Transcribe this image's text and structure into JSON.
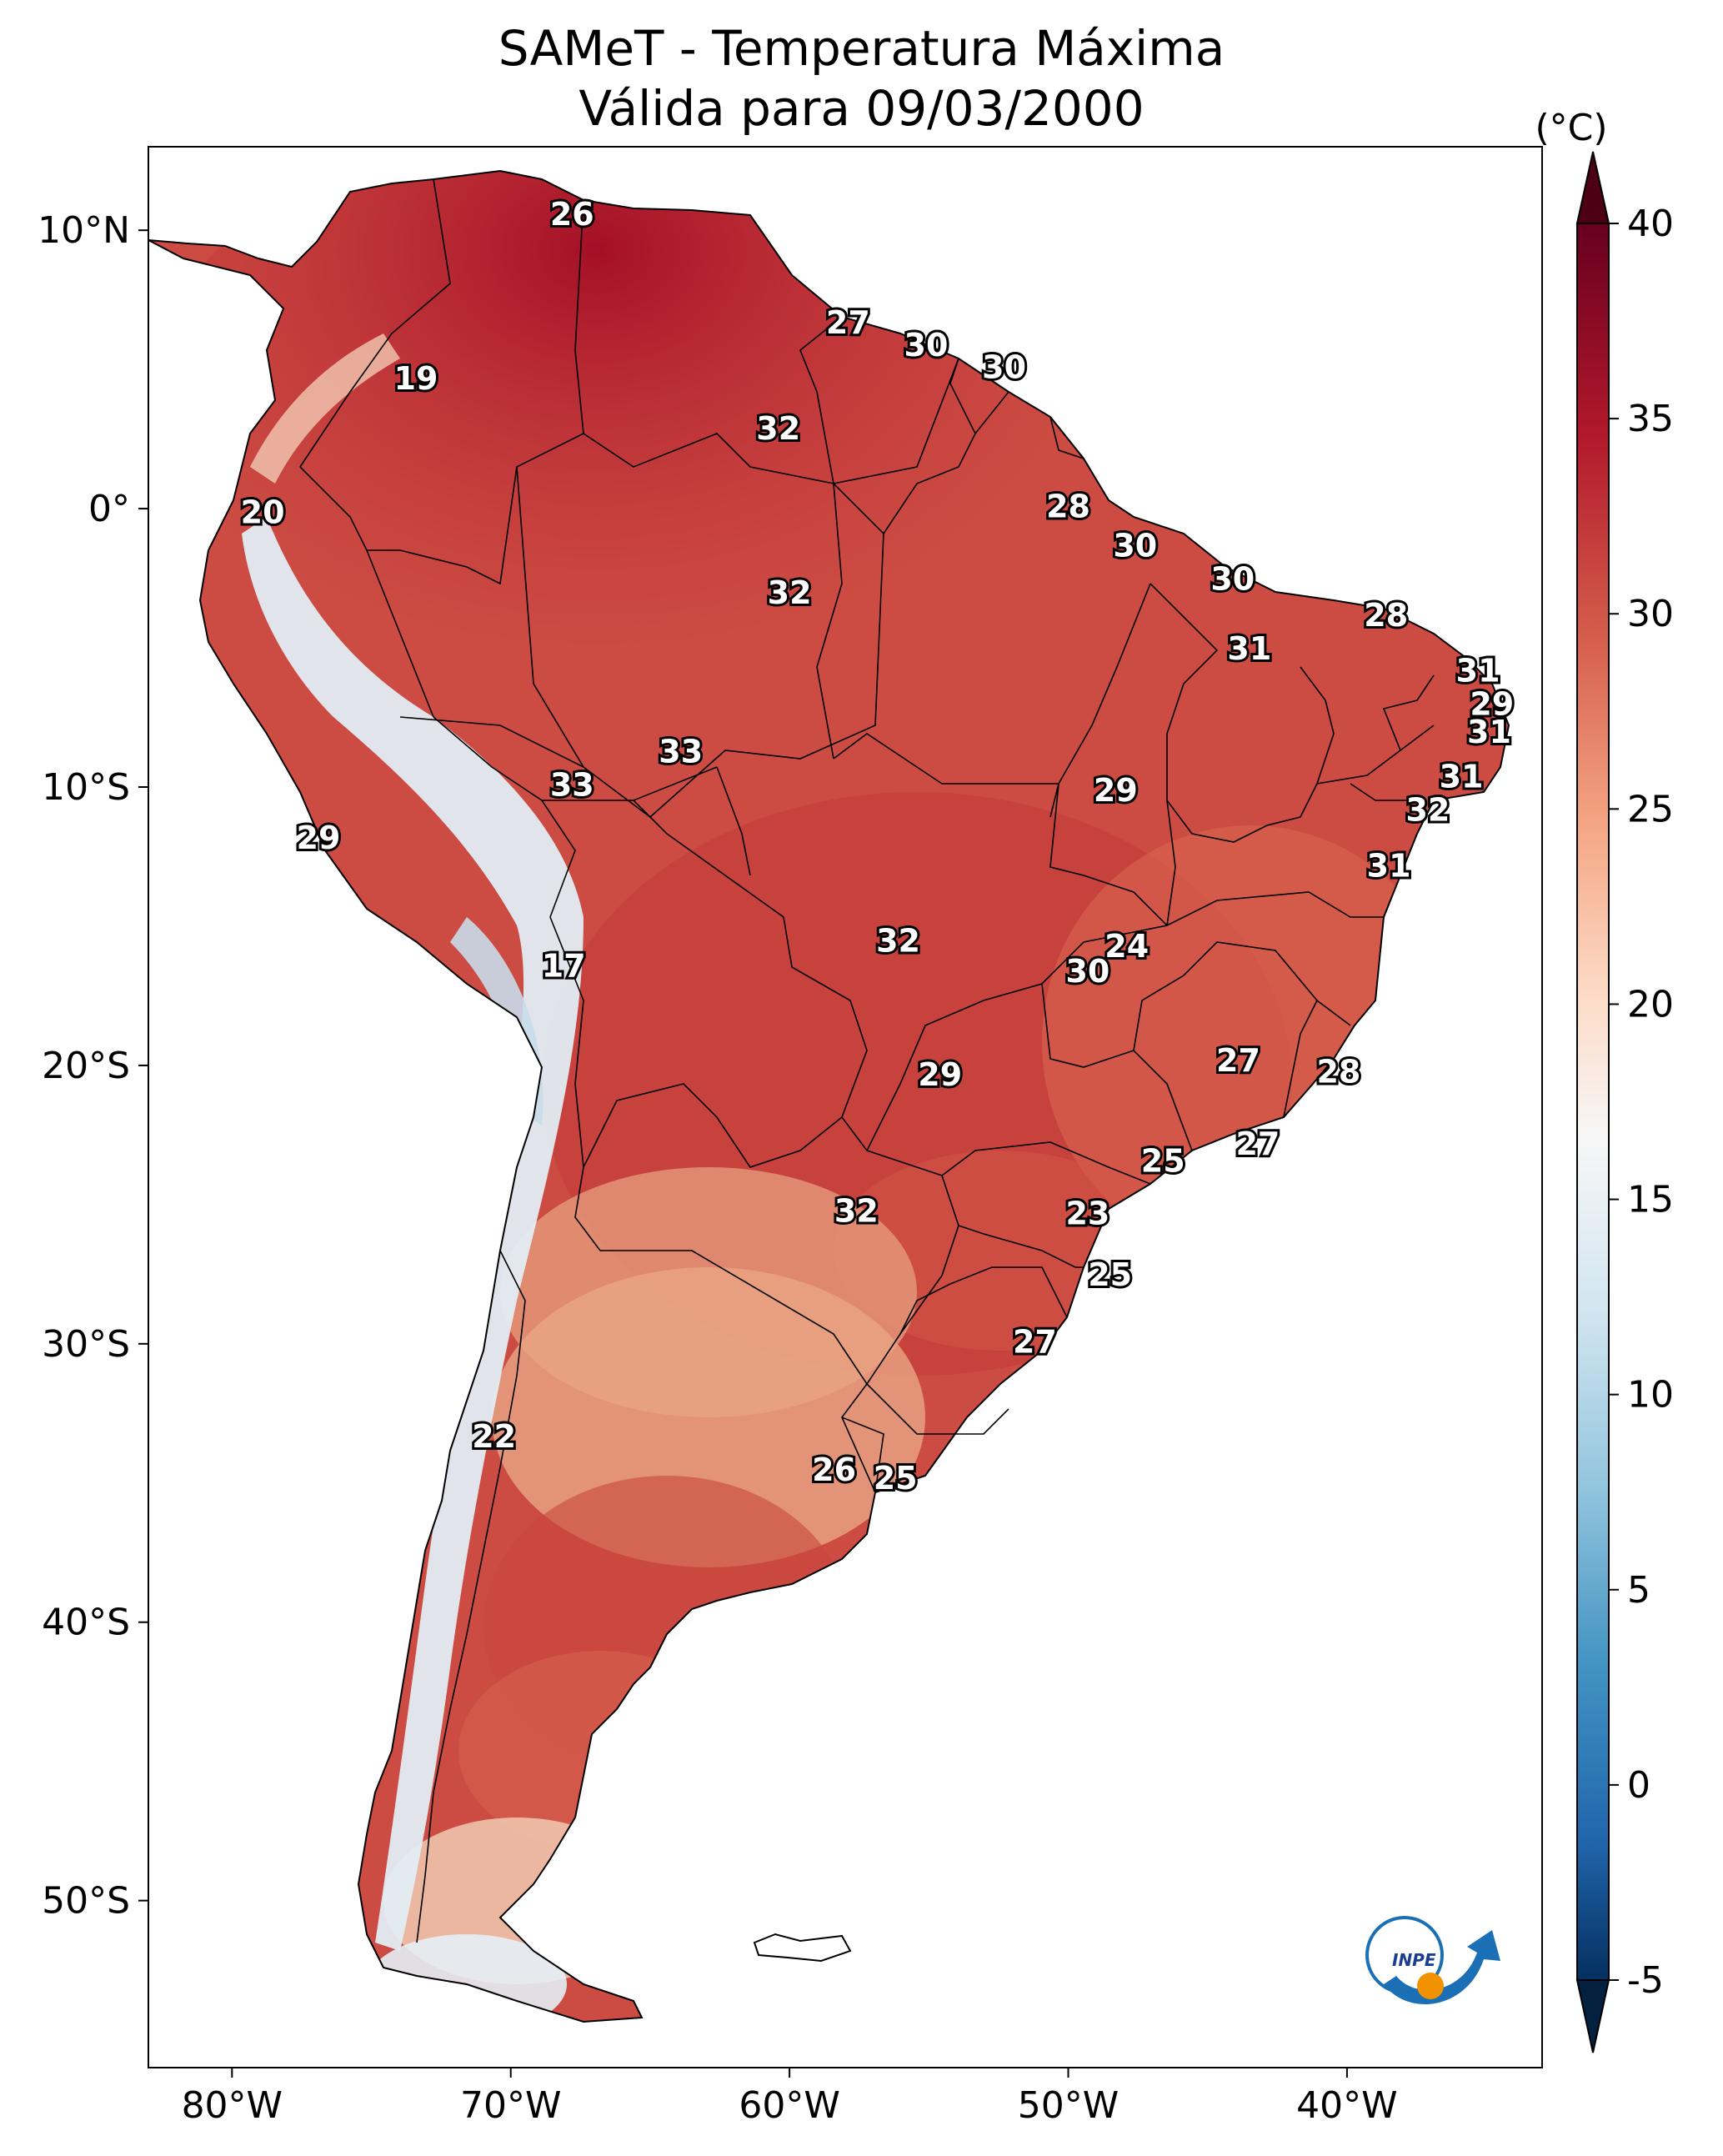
{
  "title": {
    "line1": "SAMeT - Temperatura Máxima",
    "line2": "Válida para 09/03/2000"
  },
  "map": {
    "lon_range": [
      -83,
      -33
    ],
    "lat_range": [
      -56,
      13
    ],
    "x_ticks": [
      {
        "lon": -80,
        "label": "80°W"
      },
      {
        "lon": -70,
        "label": "70°W"
      },
      {
        "lon": -60,
        "label": "60°W"
      },
      {
        "lon": -50,
        "label": "50°W"
      },
      {
        "lon": -40,
        "label": "40°W"
      }
    ],
    "y_ticks": [
      {
        "lat": 10,
        "label": "10°N"
      },
      {
        "lat": 0,
        "label": "0°"
      },
      {
        "lat": -10,
        "label": "10°S"
      },
      {
        "lat": -20,
        "label": "20°S"
      },
      {
        "lat": -30,
        "label": "30°S"
      },
      {
        "lat": -40,
        "label": "40°S"
      },
      {
        "lat": -50,
        "label": "50°S"
      }
    ]
  },
  "colorbar": {
    "unit_label": "(°C)",
    "min": -5,
    "max": 40,
    "ticks": [
      40,
      35,
      30,
      25,
      20,
      15,
      10,
      5,
      0,
      -5
    ],
    "stops": [
      "#67001f",
      "#b2182b",
      "#d6604d",
      "#f4a582",
      "#fddbc7",
      "#f7f7f7",
      "#d1e5f0",
      "#92c5de",
      "#4393c3",
      "#2166ac",
      "#053061"
    ]
  },
  "labels": [
    {
      "lon": -67.8,
      "lat": 10.5,
      "value": "26"
    },
    {
      "lon": -57.9,
      "lat": 6.6,
      "value": "27"
    },
    {
      "lon": -55.1,
      "lat": 5.8,
      "value": "30"
    },
    {
      "lon": -52.3,
      "lat": 5.0,
      "value": "30"
    },
    {
      "lon": -73.4,
      "lat": 4.6,
      "value": "19"
    },
    {
      "lon": -60.4,
      "lat": 2.8,
      "value": "32"
    },
    {
      "lon": -50.0,
      "lat": 0.0,
      "value": "28"
    },
    {
      "lon": -78.9,
      "lat": -0.2,
      "value": "20"
    },
    {
      "lon": -47.6,
      "lat": -1.4,
      "value": "30"
    },
    {
      "lon": -60.0,
      "lat": -3.1,
      "value": "32"
    },
    {
      "lon": -44.1,
      "lat": -2.6,
      "value": "30"
    },
    {
      "lon": -38.6,
      "lat": -3.9,
      "value": "28"
    },
    {
      "lon": -43.5,
      "lat": -5.1,
      "value": "31"
    },
    {
      "lon": -35.3,
      "lat": -5.9,
      "value": "31"
    },
    {
      "lon": -34.8,
      "lat": -7.1,
      "value": "29"
    },
    {
      "lon": -34.9,
      "lat": -8.1,
      "value": "31"
    },
    {
      "lon": -63.9,
      "lat": -8.8,
      "value": "33"
    },
    {
      "lon": -67.8,
      "lat": -10.0,
      "value": "33"
    },
    {
      "lon": -35.9,
      "lat": -9.7,
      "value": "31"
    },
    {
      "lon": -48.3,
      "lat": -10.2,
      "value": "29"
    },
    {
      "lon": -37.1,
      "lat": -10.9,
      "value": "32"
    },
    {
      "lon": -76.9,
      "lat": -11.9,
      "value": "29"
    },
    {
      "lon": -38.5,
      "lat": -12.9,
      "value": "31"
    },
    {
      "lon": -56.1,
      "lat": -15.6,
      "value": "32"
    },
    {
      "lon": -47.9,
      "lat": -15.8,
      "value": "24"
    },
    {
      "lon": -49.3,
      "lat": -16.7,
      "value": "30"
    },
    {
      "lon": -68.1,
      "lat": -16.5,
      "value": "17"
    },
    {
      "lon": -43.9,
      "lat": -19.9,
      "value": "27"
    },
    {
      "lon": -54.6,
      "lat": -20.4,
      "value": "29"
    },
    {
      "lon": -40.3,
      "lat": -20.3,
      "value": "28"
    },
    {
      "lon": -43.2,
      "lat": -22.9,
      "value": "27"
    },
    {
      "lon": -46.6,
      "lat": -23.5,
      "value": "25"
    },
    {
      "lon": -57.6,
      "lat": -25.3,
      "value": "32"
    },
    {
      "lon": -49.3,
      "lat": -25.4,
      "value": "23"
    },
    {
      "lon": -48.5,
      "lat": -27.6,
      "value": "25"
    },
    {
      "lon": -51.2,
      "lat": -30.0,
      "value": "27"
    },
    {
      "lon": -70.6,
      "lat": -33.4,
      "value": "22"
    },
    {
      "lon": -58.4,
      "lat": -34.6,
      "value": "26"
    },
    {
      "lon": -56.2,
      "lat": -34.9,
      "value": "25"
    }
  ],
  "logo": {
    "text": "INPE"
  }
}
